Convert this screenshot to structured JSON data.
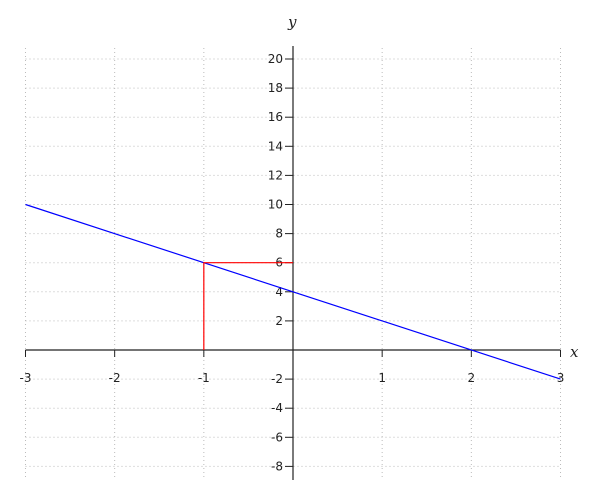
{
  "chart_data": {
    "type": "line",
    "title": "",
    "xlabel": "x",
    "ylabel": "y",
    "xlim": [
      -3,
      3
    ],
    "ylim": [
      -9,
      21
    ],
    "grid": true,
    "x_ticks": [
      -3,
      -2,
      -1,
      1,
      2,
      3
    ],
    "y_ticks": [
      -8,
      -6,
      -4,
      -2,
      2,
      4,
      6,
      8,
      10,
      12,
      14,
      16,
      18,
      20
    ],
    "series": [
      {
        "color": "#0000ff",
        "x": [
          -3,
          3
        ],
        "y": [
          10,
          -2
        ]
      },
      {
        "color": "#ff0000",
        "x": [
          -1,
          -1,
          0
        ],
        "y": [
          0,
          6,
          6
        ]
      }
    ]
  }
}
